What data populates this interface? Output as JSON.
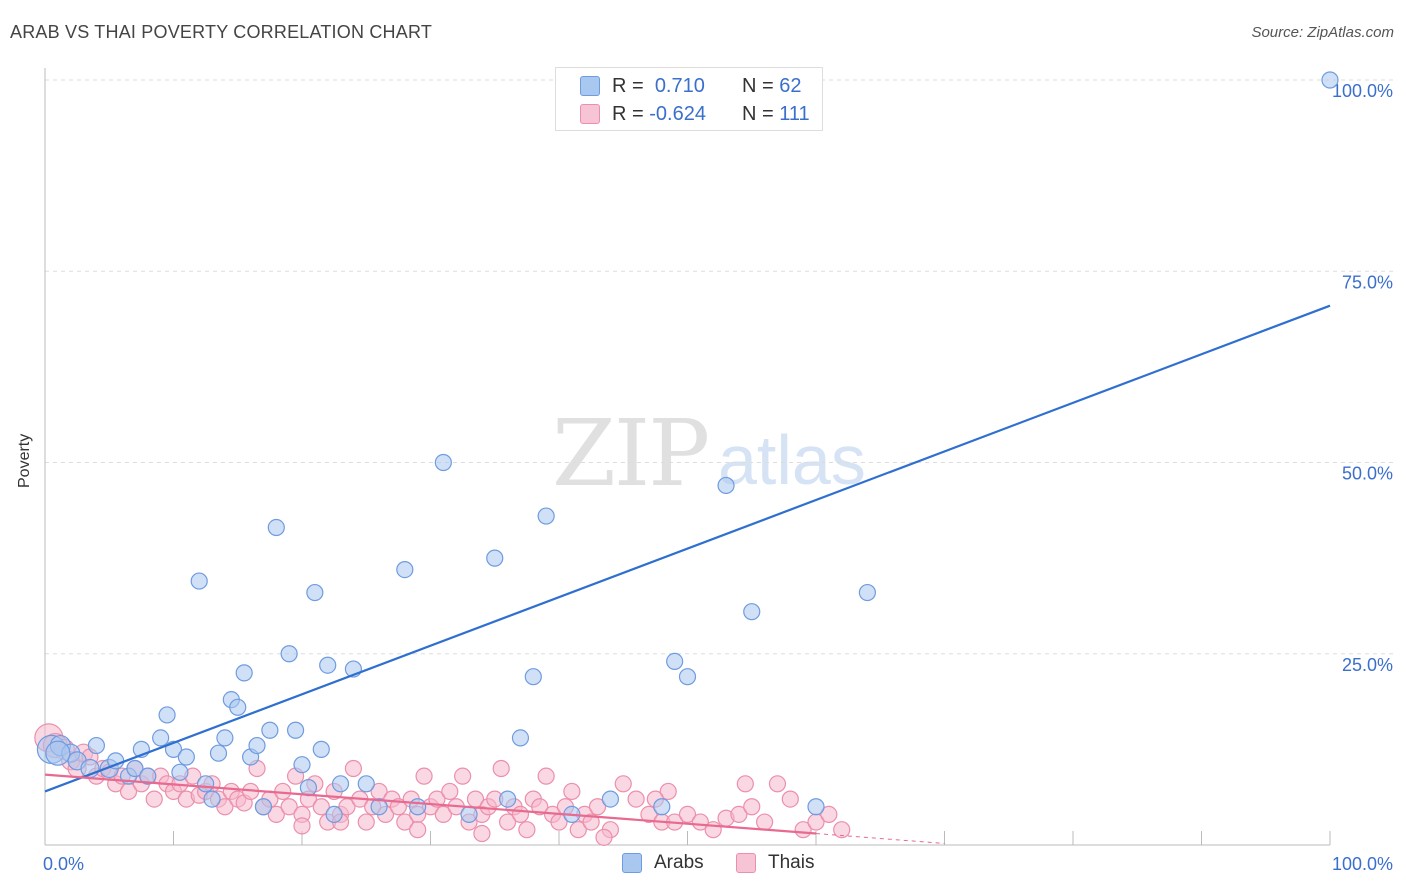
{
  "header": {
    "title": "ARAB VS THAI POVERTY CORRELATION CHART",
    "source": "Source: ZipAtlas.com"
  },
  "watermark": {
    "zip": "ZIP",
    "atlas": "atlas"
  },
  "colors": {
    "arabs_fill": "#a9c8f0",
    "arabs_stroke": "#6f9be0",
    "arabs_line": "#2e6fd0",
    "thais_fill": "#f6b8cc",
    "thais_stroke": "#ec8fab",
    "thais_line": "#e86a90",
    "grid": "#dddddd",
    "tick_text": "#3b6fcc"
  },
  "legend_top": {
    "arabs": {
      "r_label": "R =",
      "r_value": "0.710",
      "n_label": "N =",
      "n_value": "62"
    },
    "thais": {
      "r_label": "R =",
      "r_value": "-0.624",
      "n_label": "N =",
      "n_value": "111"
    }
  },
  "legend_bottom": {
    "arabs": "Arabs",
    "thais": "Thais"
  },
  "chart_data": {
    "type": "scatter",
    "ylabel": "Poverty",
    "xlabel": "",
    "xlim": [
      0,
      100
    ],
    "ylim": [
      0,
      100
    ],
    "x_tick_labels": {
      "left": "0.0%",
      "right": "100.0%"
    },
    "y_tick_labels": [
      "25.0%",
      "50.0%",
      "75.0%",
      "100.0%"
    ],
    "y_ticks": [
      25,
      50,
      75,
      100
    ],
    "grid": true,
    "legend_placement": "top-center",
    "series": [
      {
        "name": "Arabs",
        "trend": {
          "x": [
            0,
            100
          ],
          "y": [
            7,
            70.5
          ]
        },
        "points": [
          [
            0.5,
            12.5,
            14
          ],
          [
            1.2,
            13,
            10
          ],
          [
            2,
            12,
            9
          ],
          [
            2.5,
            11,
            9
          ],
          [
            3.5,
            10,
            9
          ],
          [
            4,
            13,
            8
          ],
          [
            5,
            10,
            9
          ],
          [
            5.5,
            11,
            8
          ],
          [
            6.5,
            9,
            8
          ],
          [
            7,
            10,
            8
          ],
          [
            7.5,
            12.5,
            8
          ],
          [
            8,
            9,
            8
          ],
          [
            9,
            14,
            8
          ],
          [
            9.5,
            17,
            8
          ],
          [
            10,
            12.5,
            8
          ],
          [
            10.5,
            9.5,
            8
          ],
          [
            11,
            11.5,
            8
          ],
          [
            12,
            34.5,
            8
          ],
          [
            12.5,
            8,
            8
          ],
          [
            13,
            6,
            8
          ],
          [
            13.5,
            12,
            8
          ],
          [
            14,
            14,
            8
          ],
          [
            14.5,
            19,
            8
          ],
          [
            15,
            18,
            8
          ],
          [
            15.5,
            22.5,
            8
          ],
          [
            16,
            11.5,
            8
          ],
          [
            16.5,
            13,
            8
          ],
          [
            17,
            5,
            8
          ],
          [
            17.5,
            15,
            8
          ],
          [
            18,
            41.5,
            8
          ],
          [
            19,
            25,
            8
          ],
          [
            19.5,
            15,
            8
          ],
          [
            20,
            10.5,
            8
          ],
          [
            20.5,
            7.5,
            8
          ],
          [
            21,
            33,
            8
          ],
          [
            21.5,
            12.5,
            8
          ],
          [
            22,
            23.5,
            8
          ],
          [
            22.5,
            4,
            8
          ],
          [
            23,
            8,
            8
          ],
          [
            24,
            23,
            8
          ],
          [
            25,
            8,
            8
          ],
          [
            26,
            5,
            8
          ],
          [
            28,
            36,
            8
          ],
          [
            29,
            5,
            8
          ],
          [
            31,
            50,
            8
          ],
          [
            33,
            4,
            8
          ],
          [
            35,
            37.5,
            8
          ],
          [
            36,
            6,
            8
          ],
          [
            37,
            14,
            8
          ],
          [
            38,
            22,
            8
          ],
          [
            39,
            43,
            8
          ],
          [
            41,
            4,
            8
          ],
          [
            44,
            6,
            8
          ],
          [
            49,
            24,
            8
          ],
          [
            50,
            22,
            8
          ],
          [
            53,
            47,
            8
          ],
          [
            48,
            5,
            8
          ],
          [
            55,
            30.5,
            8
          ],
          [
            60,
            5,
            8
          ],
          [
            64,
            33,
            8
          ],
          [
            100,
            100,
            8
          ],
          [
            1,
            12,
            12
          ]
        ]
      },
      {
        "name": "Thais",
        "trend": {
          "x": [
            0,
            60
          ],
          "y": [
            9.2,
            1.5
          ],
          "dashed_to": [
            70,
            0.2
          ]
        },
        "points": [
          [
            0.3,
            14,
            14
          ],
          [
            0.8,
            13,
            12
          ],
          [
            1.5,
            12.5,
            10
          ],
          [
            2,
            11,
            9
          ],
          [
            2.5,
            10,
            9
          ],
          [
            3,
            12,
            9
          ],
          [
            3.5,
            11.5,
            8
          ],
          [
            4,
            9,
            8
          ],
          [
            4.5,
            10,
            8
          ],
          [
            5,
            9.5,
            8
          ],
          [
            5.5,
            8,
            8
          ],
          [
            6,
            9,
            8
          ],
          [
            6.5,
            7,
            8
          ],
          [
            7,
            10,
            8
          ],
          [
            7.5,
            8,
            8
          ],
          [
            8,
            9,
            8
          ],
          [
            8.5,
            6,
            8
          ],
          [
            9,
            9,
            8
          ],
          [
            9.5,
            8,
            8
          ],
          [
            10,
            7,
            8
          ],
          [
            10.5,
            8,
            8
          ],
          [
            11,
            6,
            8
          ],
          [
            11.5,
            9,
            8
          ],
          [
            12,
            6.5,
            8
          ],
          [
            12.5,
            7,
            8
          ],
          [
            13,
            8,
            8
          ],
          [
            13.5,
            6,
            8
          ],
          [
            14,
            5,
            8
          ],
          [
            14.5,
            7,
            8
          ],
          [
            15,
            6,
            8
          ],
          [
            15.5,
            5.5,
            8
          ],
          [
            16,
            7,
            8
          ],
          [
            16.5,
            10,
            8
          ],
          [
            17,
            5,
            8
          ],
          [
            17.5,
            6,
            8
          ],
          [
            18,
            4,
            8
          ],
          [
            18.5,
            7,
            8
          ],
          [
            19,
            5,
            8
          ],
          [
            19.5,
            9,
            8
          ],
          [
            20,
            4,
            8
          ],
          [
            20.5,
            6,
            8
          ],
          [
            21,
            8,
            8
          ],
          [
            21.5,
            5,
            8
          ],
          [
            22,
            3,
            8
          ],
          [
            22.5,
            7,
            8
          ],
          [
            23,
            4,
            8
          ],
          [
            23.5,
            5,
            8
          ],
          [
            24,
            10,
            8
          ],
          [
            24.5,
            6,
            8
          ],
          [
            25,
            3,
            8
          ],
          [
            25.5,
            5,
            8
          ],
          [
            26,
            7,
            8
          ],
          [
            26.5,
            4,
            8
          ],
          [
            27,
            6,
            8
          ],
          [
            27.5,
            5,
            8
          ],
          [
            28,
            3,
            8
          ],
          [
            28.5,
            6,
            8
          ],
          [
            29,
            4,
            8
          ],
          [
            29.5,
            9,
            8
          ],
          [
            30,
            5,
            8
          ],
          [
            30.5,
            6,
            8
          ],
          [
            31,
            4,
            8
          ],
          [
            31.5,
            7,
            8
          ],
          [
            32,
            5,
            8
          ],
          [
            32.5,
            9,
            8
          ],
          [
            33,
            3,
            8
          ],
          [
            33.5,
            6,
            8
          ],
          [
            34,
            4,
            8
          ],
          [
            34.5,
            5,
            8
          ],
          [
            35,
            6,
            8
          ],
          [
            35.5,
            10,
            8
          ],
          [
            36,
            3,
            8
          ],
          [
            36.5,
            5,
            8
          ],
          [
            37,
            4,
            8
          ],
          [
            37.5,
            2,
            8
          ],
          [
            38,
            6,
            8
          ],
          [
            38.5,
            5,
            8
          ],
          [
            39,
            9,
            8
          ],
          [
            39.5,
            4,
            8
          ],
          [
            40,
            3,
            8
          ],
          [
            40.5,
            5,
            8
          ],
          [
            41,
            7,
            8
          ],
          [
            41.5,
            2,
            8
          ],
          [
            42,
            4,
            8
          ],
          [
            42.5,
            3,
            8
          ],
          [
            43,
            5,
            8
          ],
          [
            44,
            2,
            8
          ],
          [
            45,
            8,
            8
          ],
          [
            46,
            6,
            8
          ],
          [
            47,
            4,
            8
          ],
          [
            48,
            3,
            8
          ],
          [
            48.5,
            7,
            8
          ],
          [
            49,
            3,
            8
          ],
          [
            50,
            4,
            8
          ],
          [
            51,
            3,
            8
          ],
          [
            52,
            2,
            8
          ],
          [
            53,
            3.5,
            8
          ],
          [
            54,
            4,
            8
          ],
          [
            55,
            5,
            8
          ],
          [
            56,
            3,
            8
          ],
          [
            57,
            8,
            8
          ],
          [
            58,
            6,
            8
          ],
          [
            59,
            2,
            8
          ],
          [
            60,
            3,
            8
          ],
          [
            61,
            4,
            8
          ],
          [
            62,
            2,
            8
          ],
          [
            54.5,
            8,
            8
          ],
          [
            47.5,
            6,
            8
          ],
          [
            43.5,
            1,
            8
          ],
          [
            34,
            1.5,
            8
          ],
          [
            29,
            2,
            8
          ],
          [
            23,
            3,
            8
          ],
          [
            20,
            2.5,
            8
          ]
        ]
      }
    ]
  }
}
